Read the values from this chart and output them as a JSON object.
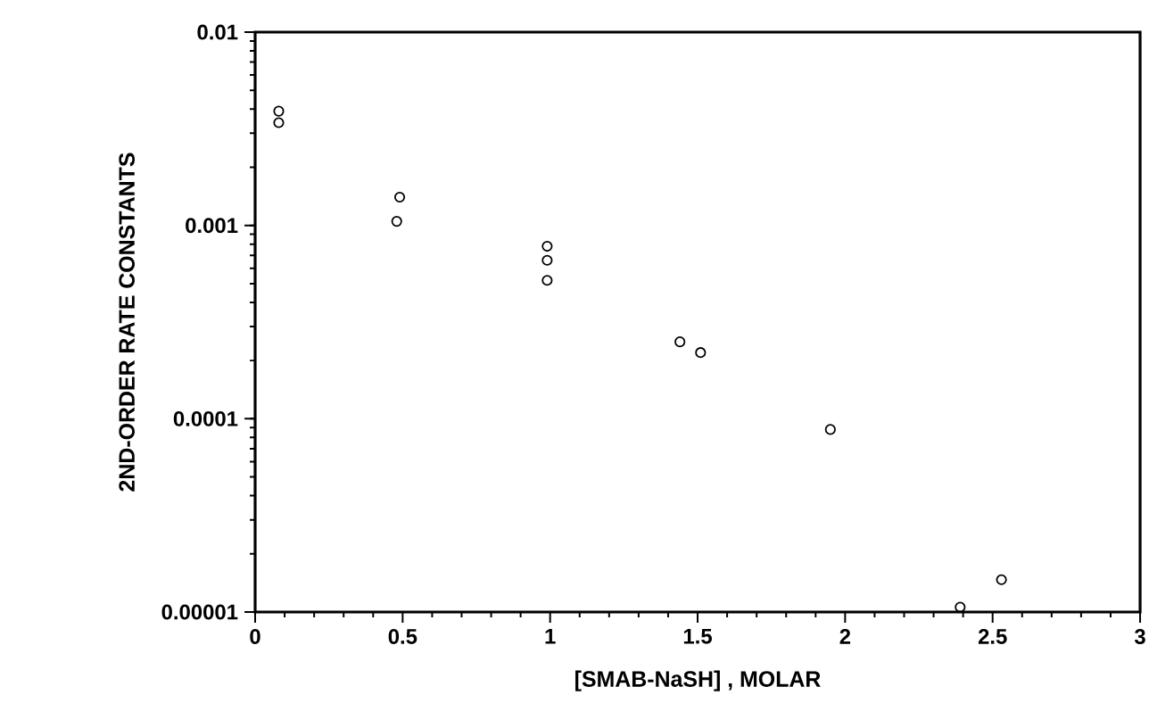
{
  "chart_data": {
    "type": "scatter",
    "xlabel": "[SMAB-NaSH] , MOLAR",
    "ylabel": "2ND-ORDER RATE CONSTANTS",
    "x": [
      0.08,
      0.08,
      0.49,
      0.48,
      0.99,
      0.99,
      0.99,
      1.44,
      1.51,
      1.95,
      2.39,
      2.53
    ],
    "values": [
      0.0039,
      0.0034,
      0.0014,
      0.00105,
      0.00078,
      0.00066,
      0.00052,
      0.00025,
      0.00022,
      8.8e-05,
      1.06e-05,
      1.47e-05
    ],
    "color": "#000000",
    "marker": "circle",
    "log": "y",
    "grid": false,
    "xlim": [
      0,
      3
    ],
    "xticks": [
      0,
      0.5,
      1,
      1.5,
      2,
      2.5,
      3
    ],
    "ylim": [
      1e-05,
      0.01
    ],
    "yticks": [
      {
        "value": 1e-05,
        "label": "0.00001"
      },
      {
        "value": 0.0001,
        "label": "0.0001"
      },
      {
        "value": 0.001,
        "label": "0.001"
      },
      {
        "value": 0.01,
        "label": "0.01"
      }
    ]
  }
}
